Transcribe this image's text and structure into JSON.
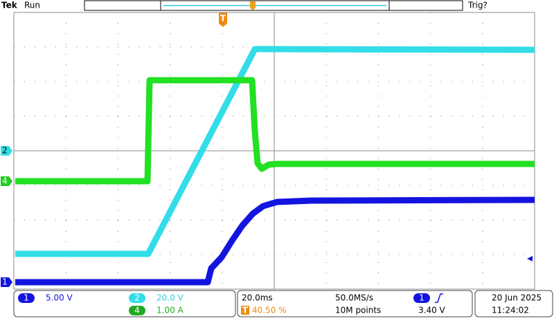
{
  "header": {
    "brand": "Tek",
    "status": "Run",
    "trigger_status": "Trig?"
  },
  "channels": [
    {
      "label": "1",
      "scale": "5.00 V"
    },
    {
      "label": "2",
      "scale": "20.0 V"
    },
    {
      "label": "4",
      "scale": "1.00 A"
    }
  ],
  "timebase": {
    "scale": "20.0ms",
    "marker": "T",
    "position": "40.50 %",
    "sample_rate": "50.0MS/s",
    "record_length": "10M points"
  },
  "trigger": {
    "source": "1",
    "level": "3.40 V"
  },
  "date": "20 Jun 2025",
  "time": "11:24:02"
}
